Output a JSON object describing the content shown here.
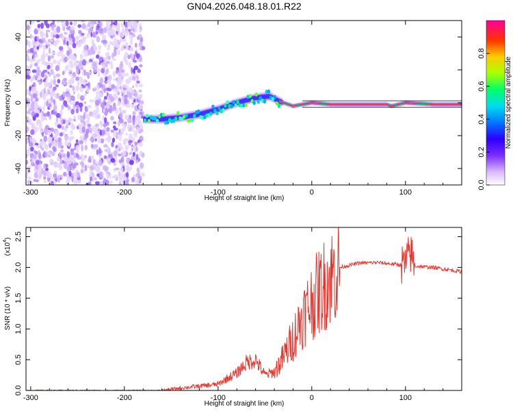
{
  "title": "GN04.2026.048.18.01.R22",
  "chart_data": [
    {
      "type": "heatmap",
      "name": "spectrogram",
      "xlabel": "Height of straight line (km)",
      "ylabel": "Frequency (Hz)",
      "xlim": [
        -305,
        160
      ],
      "ylim": [
        -50,
        50
      ],
      "xticks": [
        -300,
        -200,
        -100,
        0,
        100
      ],
      "yticks": [
        -40,
        -20,
        0,
        20,
        40
      ],
      "colorbar": {
        "label": "Normalized spectral amplitude",
        "range": [
          0,
          1
        ],
        "ticks": [
          "0.0",
          "0.2",
          "0.4",
          "0.6",
          "0.8"
        ],
        "tick_values": [
          0.0,
          0.2,
          0.4,
          0.6,
          0.8
        ],
        "colors": [
          "#ffffff",
          "#9933ff",
          "#3300ff",
          "#00ccff",
          "#00ff66",
          "#ccff00",
          "#ffaa00",
          "#ff0000",
          "#ff0099"
        ]
      },
      "trace": {
        "x": [
          -180,
          -160,
          -140,
          -120,
          -100,
          -80,
          -60,
          -45,
          -35,
          -20,
          -10,
          0,
          20,
          50,
          80,
          85,
          100,
          130,
          160
        ],
        "y": [
          -10,
          -10,
          -9,
          -7,
          -4,
          0,
          3,
          4,
          1,
          -2,
          -1,
          0,
          -1,
          -1,
          -1,
          -2,
          0,
          -1,
          -1
        ]
      },
      "noise_region": [
        -305,
        -180
      ]
    },
    {
      "type": "line",
      "name": "snr",
      "xlabel": "Height of straight line (km)",
      "ylabel": "SNR (10 * v/v)",
      "scale_label": "(x10",
      "scale_exp": "4",
      "xlim": [
        -305,
        160
      ],
      "ylim": [
        0,
        2.65
      ],
      "xticks": [
        -300,
        -200,
        -100,
        0,
        100
      ],
      "yticks": [
        0.0,
        0.5,
        1.0,
        1.5,
        2.0,
        2.5
      ],
      "ytick_labels": [
        "0.0",
        "0.5",
        "1.0",
        "1.5",
        "2.0",
        "2.5"
      ],
      "series": [
        {
          "name": "SNR",
          "color": "#e8322a",
          "x": [
            -305,
            -160,
            -140,
            -120,
            -100,
            -90,
            -80,
            -70,
            -60,
            -50,
            -40,
            -30,
            -20,
            -10,
            0,
            10,
            20,
            30,
            50,
            70,
            90,
            100,
            105,
            110,
            130,
            160
          ],
          "y": [
            0.0,
            0.0,
            0.04,
            0.07,
            0.1,
            0.2,
            0.28,
            0.45,
            0.5,
            0.25,
            0.3,
            0.55,
            0.85,
            1.2,
            1.45,
            1.65,
            1.85,
            2.0,
            2.07,
            2.08,
            2.05,
            2.04,
            2.25,
            2.02,
            2.0,
            1.93
          ]
        }
      ]
    }
  ]
}
